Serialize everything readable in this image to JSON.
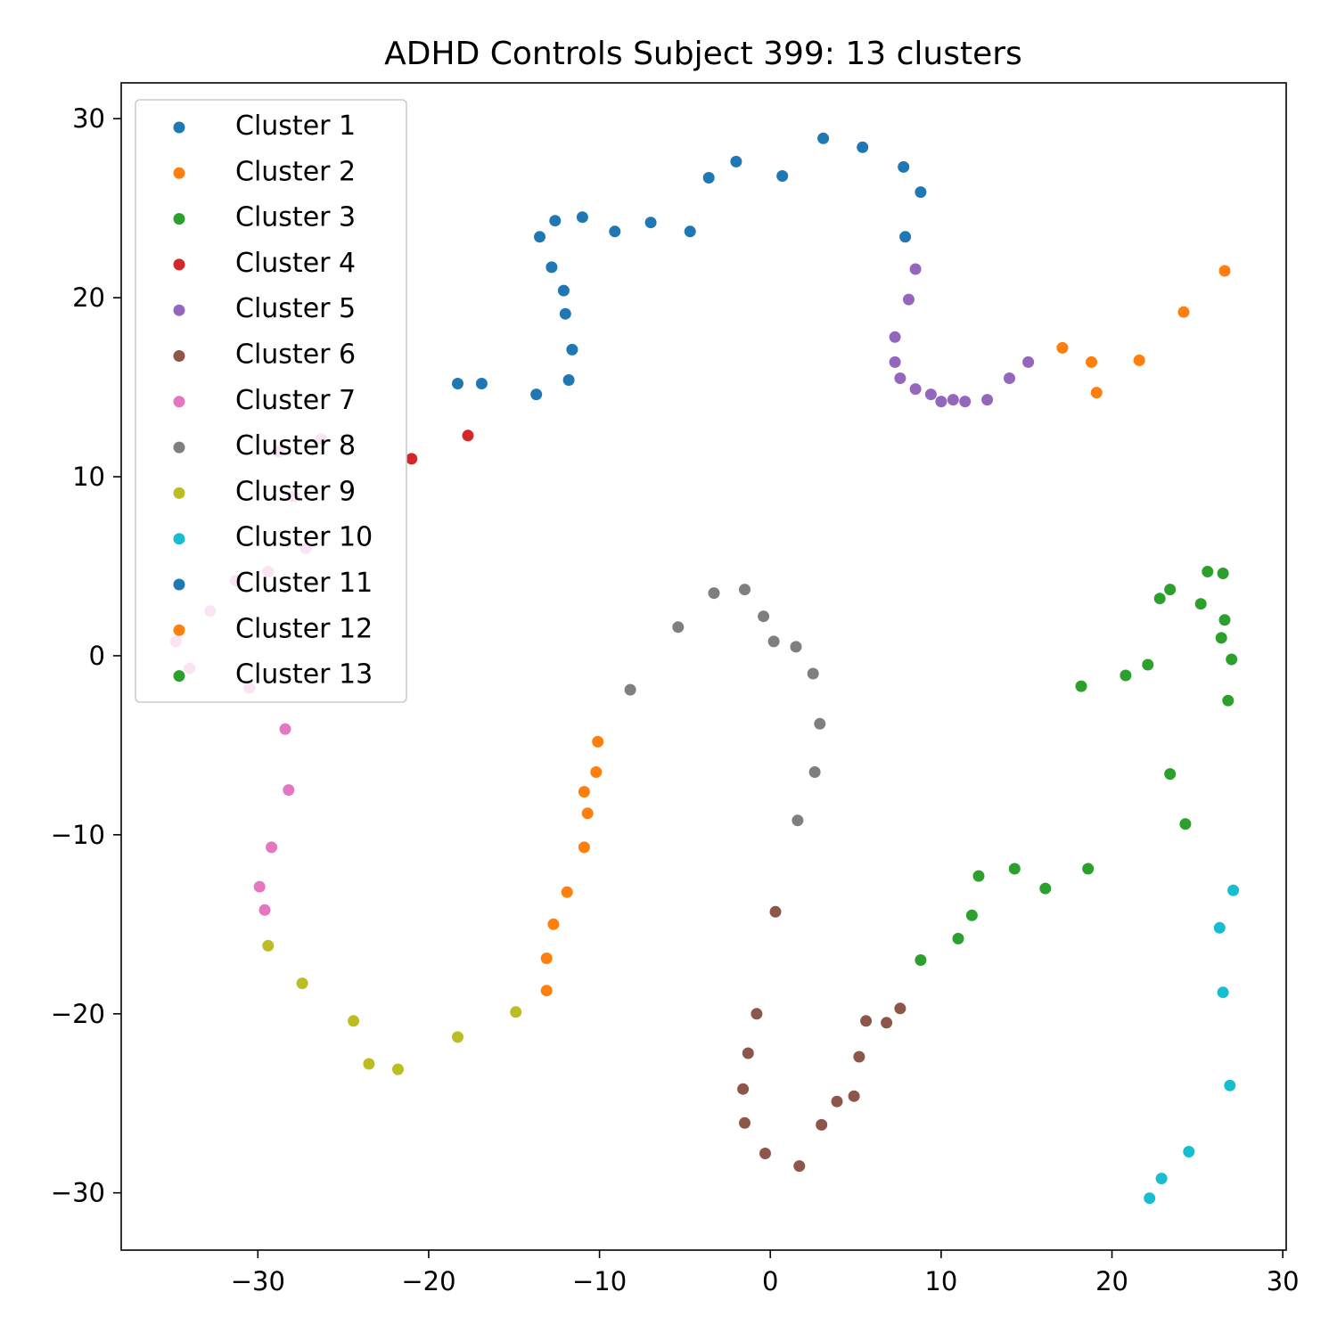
{
  "chart_data": {
    "type": "scatter",
    "title": "ADHD Controls Subject 399: 13 clusters",
    "xlabel": "",
    "ylabel": "",
    "xlim": [
      -38,
      30.2
    ],
    "ylim": [
      -33.2,
      32
    ],
    "xticks": [
      -30,
      -20,
      -10,
      0,
      10,
      20,
      30
    ],
    "yticks": [
      -30,
      -20,
      -10,
      0,
      10,
      20,
      30
    ],
    "grid": false,
    "legend_position": "top-left",
    "series": [
      {
        "name": "Cluster 1",
        "color": "#1f77b4",
        "points": [
          [
            -18.3,
            15.2
          ],
          [
            -16.9,
            15.2
          ],
          [
            -13.7,
            14.6
          ],
          [
            -11.8,
            15.4
          ],
          [
            -11.6,
            17.1
          ],
          [
            -12.0,
            19.1
          ],
          [
            -12.1,
            20.4
          ],
          [
            -12.8,
            21.7
          ],
          [
            -13.5,
            23.4
          ],
          [
            -12.6,
            24.3
          ],
          [
            -11.0,
            24.5
          ],
          [
            -9.1,
            23.7
          ],
          [
            -7.0,
            24.2
          ],
          [
            -4.7,
            23.7
          ],
          [
            -3.6,
            26.7
          ],
          [
            -2.0,
            27.6
          ],
          [
            0.7,
            26.8
          ],
          [
            3.1,
            28.9
          ],
          [
            5.4,
            28.4
          ],
          [
            7.8,
            27.3
          ],
          [
            8.8,
            25.9
          ],
          [
            7.9,
            23.4
          ]
        ]
      },
      {
        "name": "Cluster 2",
        "color": "#ff7f0e",
        "points": [
          [
            26.6,
            21.5
          ],
          [
            24.2,
            19.2
          ],
          [
            17.1,
            17.2
          ],
          [
            18.8,
            16.4
          ],
          [
            21.6,
            16.5
          ],
          [
            19.1,
            14.7
          ]
        ]
      },
      {
        "name": "Cluster 3",
        "color": "#2ca02c",
        "points": [
          [
            25.6,
            4.7
          ],
          [
            26.5,
            4.6
          ],
          [
            23.4,
            3.7
          ],
          [
            22.8,
            3.2
          ],
          [
            25.2,
            2.9
          ],
          [
            26.6,
            2.0
          ],
          [
            26.4,
            1.0
          ],
          [
            27.0,
            -0.2
          ],
          [
            22.1,
            -0.5
          ],
          [
            20.8,
            -1.1
          ],
          [
            18.2,
            -1.7
          ],
          [
            26.8,
            -2.5
          ],
          [
            23.4,
            -6.6
          ],
          [
            24.3,
            -9.4
          ]
        ]
      },
      {
        "name": "Cluster 4",
        "color": "#d62728",
        "points": [
          [
            -17.7,
            12.3
          ],
          [
            -21.0,
            11.0
          ]
        ]
      },
      {
        "name": "Cluster 5",
        "color": "#9467bd",
        "points": [
          [
            8.5,
            21.6
          ],
          [
            8.1,
            19.9
          ],
          [
            7.3,
            17.8
          ],
          [
            7.3,
            16.4
          ],
          [
            7.6,
            15.5
          ],
          [
            8.5,
            14.9
          ],
          [
            9.4,
            14.6
          ],
          [
            10.0,
            14.2
          ],
          [
            10.7,
            14.3
          ],
          [
            11.4,
            14.2
          ],
          [
            12.7,
            14.3
          ],
          [
            14.0,
            15.5
          ],
          [
            15.1,
            16.4
          ]
        ]
      },
      {
        "name": "Cluster 6",
        "color": "#8c564b",
        "points": [
          [
            0.3,
            -14.3
          ],
          [
            -0.8,
            -20.0
          ],
          [
            -1.3,
            -22.2
          ],
          [
            -1.6,
            -24.2
          ],
          [
            -1.5,
            -26.1
          ],
          [
            -0.3,
            -27.8
          ],
          [
            1.7,
            -28.5
          ],
          [
            3.0,
            -26.2
          ],
          [
            3.9,
            -24.9
          ],
          [
            4.9,
            -24.6
          ],
          [
            5.2,
            -22.4
          ],
          [
            5.6,
            -20.4
          ],
          [
            6.8,
            -20.5
          ],
          [
            7.6,
            -19.7
          ]
        ]
      },
      {
        "name": "Cluster 7",
        "color": "#e377c2",
        "points": [
          [
            -26.3,
            12.1
          ],
          [
            -28.8,
            11.4
          ],
          [
            -27.9,
            8.9
          ],
          [
            -27.2,
            6.0
          ],
          [
            -29.4,
            4.7
          ],
          [
            -31.3,
            4.2
          ],
          [
            -32.8,
            2.5
          ],
          [
            -34.8,
            0.8
          ],
          [
            -34.0,
            -0.7
          ],
          [
            -30.5,
            -1.8
          ],
          [
            -28.4,
            -4.1
          ],
          [
            -28.2,
            -7.5
          ],
          [
            -29.2,
            -10.7
          ],
          [
            -29.9,
            -12.9
          ],
          [
            -29.6,
            -14.2
          ]
        ]
      },
      {
        "name": "Cluster 8",
        "color": "#7f7f7f",
        "points": [
          [
            -3.3,
            3.5
          ],
          [
            -1.5,
            3.7
          ],
          [
            -0.4,
            2.2
          ],
          [
            0.2,
            0.8
          ],
          [
            1.5,
            0.5
          ],
          [
            -5.4,
            1.6
          ],
          [
            2.5,
            -1.0
          ],
          [
            -8.2,
            -1.9
          ],
          [
            2.9,
            -3.8
          ],
          [
            2.6,
            -6.5
          ],
          [
            1.6,
            -9.2
          ]
        ]
      },
      {
        "name": "Cluster 9",
        "color": "#bcbd22",
        "points": [
          [
            -29.4,
            -16.2
          ],
          [
            -27.4,
            -18.3
          ],
          [
            -24.4,
            -20.4
          ],
          [
            -23.5,
            -22.8
          ],
          [
            -21.8,
            -23.1
          ],
          [
            -18.3,
            -21.3
          ],
          [
            -14.9,
            -19.9
          ]
        ]
      },
      {
        "name": "Cluster 10",
        "color": "#17becf",
        "points": [
          [
            27.1,
            -13.1
          ],
          [
            26.3,
            -15.2
          ],
          [
            26.5,
            -18.8
          ],
          [
            26.9,
            -24.0
          ],
          [
            24.5,
            -27.7
          ],
          [
            22.9,
            -29.2
          ],
          [
            22.2,
            -30.3
          ]
        ]
      },
      {
        "name": "Cluster 11",
        "color": "#1f77b4",
        "points": []
      },
      {
        "name": "Cluster 12",
        "color": "#ff7f0e",
        "points": [
          [
            -10.1,
            -4.8
          ],
          [
            -10.2,
            -6.5
          ],
          [
            -10.9,
            -7.6
          ],
          [
            -10.7,
            -8.8
          ],
          [
            -10.9,
            -10.7
          ],
          [
            -11.9,
            -13.2
          ],
          [
            -12.7,
            -15.0
          ],
          [
            -13.1,
            -16.9
          ],
          [
            -13.1,
            -18.7
          ]
        ]
      },
      {
        "name": "Cluster 13",
        "color": "#2ca02c",
        "points": [
          [
            14.3,
            -11.9
          ],
          [
            18.6,
            -11.9
          ],
          [
            12.2,
            -12.3
          ],
          [
            16.1,
            -13.0
          ],
          [
            11.8,
            -14.5
          ],
          [
            11.0,
            -15.8
          ],
          [
            8.8,
            -17.0
          ]
        ]
      }
    ]
  }
}
